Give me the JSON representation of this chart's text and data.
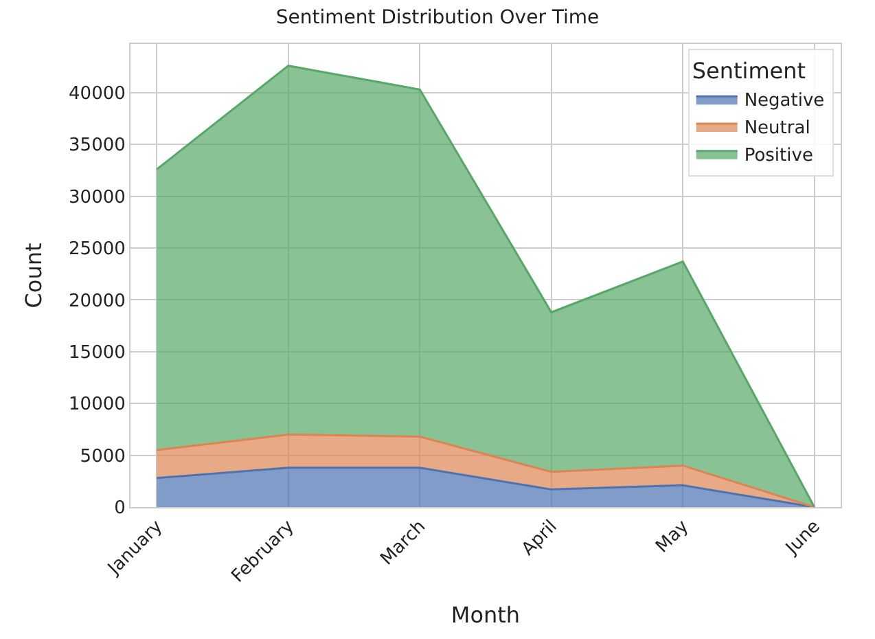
{
  "chart_data": {
    "type": "area",
    "stacked": true,
    "title": "Sentiment Distribution Over Time",
    "xlabel": "Month",
    "ylabel": "Count",
    "legend_title": "Sentiment",
    "legend": "top right",
    "grid": true,
    "categories": [
      "January",
      "February",
      "March",
      "April",
      "May",
      "June"
    ],
    "series": [
      {
        "name": "Negative",
        "color": "#4c72b0",
        "values": [
          2800,
          3800,
          3800,
          1700,
          2100,
          0
        ]
      },
      {
        "name": "Neutral",
        "color": "#dd8452",
        "values": [
          2700,
          3200,
          3000,
          1700,
          1900,
          0
        ]
      },
      {
        "name": "Positive",
        "color": "#55a868",
        "values": [
          27100,
          35600,
          33500,
          15400,
          19700,
          0
        ]
      }
    ],
    "ylim": [
      0,
      44700
    ],
    "yticks": [
      0,
      5000,
      10000,
      15000,
      20000,
      25000,
      30000,
      35000,
      40000
    ]
  }
}
